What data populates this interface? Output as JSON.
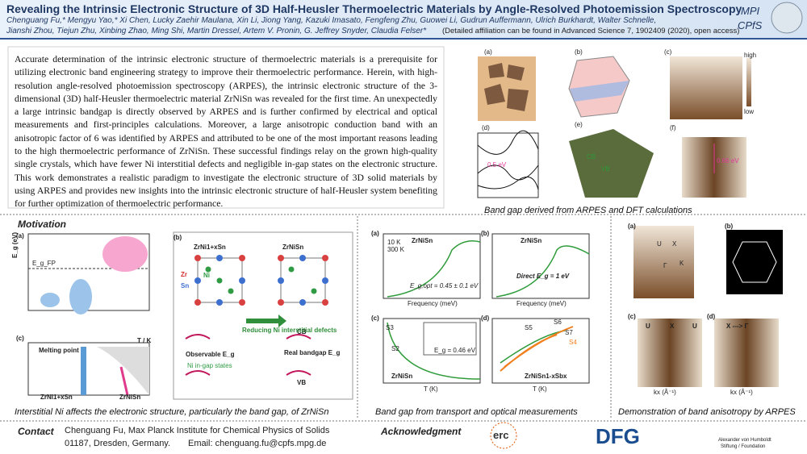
{
  "header": {
    "title": "Revealing the Intrinsic Electronic Structure of 3D Half-Heusler Thermoelectric Materials by Angle-Resolved Photoemission Spectroscopy",
    "authors_1": "Chenguang Fu,* Mengyu Yao,* Xi Chen, Lucky Zaehir Maulana, Xin Li, Jiong Yang, Kazuki Imasato, Fengfeng Zhu, Guowei Li, Gudrun Auffermann, Ulrich Burkhardt, Walter Schnelle,",
    "authors_2": "Jianshi Zhou, Tiejun Zhu, Xinbing Zhao, Ming Shi, Martin Dressel, Artem V. Pronin, G. Jeffrey Snyder, Claudia Felser*",
    "affiliation_note": "(Detailed affiliation can be found in Advanced Science 7, 1902409 (2020), open access)",
    "institute": [
      "MPI",
      "CPfS"
    ]
  },
  "abstract": "Accurate determination of the intrinsic electronic structure of thermoelectric materials is a prerequisite for utilizing electronic band engineering strategy to improve their thermoelectric performance. Herein, with high-resolution angle-resolved photoemission spectroscopy (ARPES), the intrinsic electronic structure of the 3-dimensional (3D) half-Heusler thermoelectric material ZrNiSn was revealed for the first time. An unexpectedly a large intrinsic bandgap is directly observed by ARPES and is further confirmed by electrical and optical measurements and first-principles calculations. Moreover, a large anisotropic conduction band with an anisotropic factor of 6 was identified by ARPES and attributed to be one of the most important reasons leading to the high thermoelectric performance of ZrNiSn. These successful findings relay on the grown high-quality single crystals, which have fewer Ni interstitial defects and negligible in-gap states on the electronic structure. This work demonstrates a realistic paradigm to investigate the electronic structure of 3D solid materials by using ARPES and provides new insights into the intrinsic electronic structure of half-Heusler system benefiting for further optimization of thermoelectric performance.",
  "band_gap_figure": {
    "panel_labels": [
      "(a)",
      "(b)",
      "(c)",
      "(d)",
      "(e)",
      "(f)"
    ],
    "annotations": [
      "0.5 eV",
      "0.66 eV",
      "CB",
      "VB",
      "high",
      "low"
    ],
    "caption": "Band gap derived from ARPES and DFT calculations"
  },
  "motivation": {
    "heading": "Motivation",
    "panel_labels": [
      "(a)",
      "(b)",
      "(c)"
    ],
    "axis_label": "E_g (eV)",
    "labels": [
      "E_g_FP",
      "ZrNi1+xSn",
      "ZrNiSn",
      "Zr",
      "Ni",
      "Sn",
      "CB",
      "VB",
      "Observable E_g",
      "Ni in-gap states",
      "Reducing Ni interstitial defects",
      "Real bandgap E_g",
      "Melting point",
      "T / K",
      "ZrNi1+xSn",
      "ZrNiSn"
    ],
    "caption": "Interstitial Ni affects the electronic structure, particularly the band gap, of ZrNiSn"
  },
  "transport": {
    "panel_labels": [
      "(a)",
      "(b)",
      "(c)",
      "(d)"
    ],
    "labels": [
      "ZrNiSn",
      "ZrNiSn",
      "10 K",
      "300 K",
      "Frequency (meV)",
      "Frequency (meV)",
      "E_g,opt = 0.45 ± 0.1 eV",
      "Direct E_g = 1 eV",
      "T (K)",
      "T (K)",
      "S3",
      "S2",
      "E_g = 0.46 eV",
      "ZrNiSn",
      "S5",
      "S6",
      "S7",
      "S4",
      "ZrNiSn1-xSbx"
    ],
    "caption": "Band gap from transport and optical measurements"
  },
  "anisotropy": {
    "panel_labels": [
      "(a)",
      "(b)",
      "(c)",
      "(d)"
    ],
    "labels": [
      "U",
      "X",
      "Γ",
      "K",
      "U",
      "X",
      "U",
      "X ---> Γ",
      "kx (Å⁻¹)",
      "kx (Å⁻¹)"
    ],
    "caption": "Demonstration of band anisotropy by ARPES"
  },
  "footer": {
    "contact_label": "Contact",
    "contact_1": "Chenguang Fu, Max Planck Institute for Chemical Physics of Solids",
    "contact_2": "01187, Dresden, Germany.",
    "email": "Email: chenguang.fu@cpfs.mpg.de",
    "acknowledgment_label": "Acknowledgment",
    "logos": [
      "erc",
      "DFG",
      "Alexander von Humboldt",
      "Stiftung / Foundation"
    ]
  }
}
